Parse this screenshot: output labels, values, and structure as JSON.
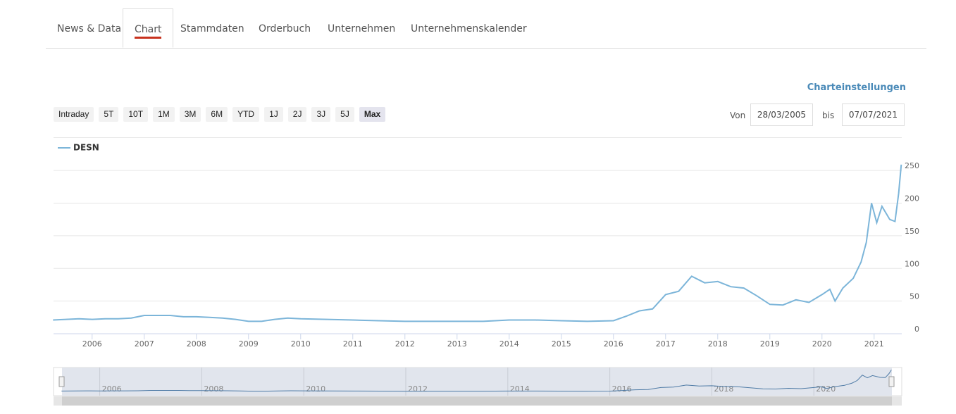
{
  "tabs": [
    "News & Data",
    "Chart",
    "Stammdaten",
    "Orderbuch",
    "Unternehmen",
    "Unternehmenskalender"
  ],
  "active_tab": 1,
  "settings_link": "Charteinstellungen",
  "ranges": [
    "Intraday",
    "5T",
    "10T",
    "1M",
    "3M",
    "6M",
    "YTD",
    "1J",
    "2J",
    "3J",
    "5J",
    "Max"
  ],
  "active_range": 11,
  "from_label": "Von",
  "from_date": "28/03/2005",
  "to_label": "bis",
  "to_date": "07/07/2021",
  "chart_data": {
    "type": "line",
    "x": [
      2005.25,
      2005.5,
      2005.75,
      2006,
      2006.25,
      2006.5,
      2006.75,
      2007,
      2007.25,
      2007.5,
      2007.75,
      2008,
      2008.25,
      2008.5,
      2008.75,
      2009,
      2009.25,
      2009.5,
      2009.75,
      2010,
      2010.5,
      2011,
      2011.5,
      2012,
      2012.5,
      2013,
      2013.5,
      2014,
      2014.5,
      2015,
      2015.5,
      2016,
      2016.25,
      2016.5,
      2016.75,
      2017,
      2017.25,
      2017.5,
      2017.75,
      2018,
      2018.25,
      2018.5,
      2018.75,
      2019,
      2019.25,
      2019.5,
      2019.75,
      2020,
      2020.15,
      2020.25,
      2020.4,
      2020.6,
      2020.75,
      2020.85,
      2020.95,
      2021.05,
      2021.15,
      2021.3,
      2021.4,
      2021.47,
      2021.52
    ],
    "series": [
      {
        "name": "DESN",
        "color": "#7cb5d9",
        "values": [
          21,
          22,
          23,
          22,
          23,
          23,
          24,
          28,
          28,
          28,
          26,
          26,
          25,
          24,
          22,
          19,
          19,
          22,
          24,
          23,
          22,
          21,
          20,
          19,
          19,
          19,
          19,
          21,
          21,
          20,
          19,
          20,
          27,
          35,
          38,
          60,
          65,
          88,
          78,
          80,
          72,
          70,
          58,
          45,
          44,
          52,
          48,
          60,
          68,
          50,
          70,
          85,
          110,
          140,
          200,
          170,
          195,
          175,
          172,
          215,
          259
        ]
      }
    ],
    "xlim": [
      2005.26,
      2021.53
    ],
    "xticks": [
      2006,
      2007,
      2008,
      2009,
      2010,
      2011,
      2012,
      2013,
      2014,
      2015,
      2016,
      2017,
      2018,
      2019,
      2020,
      2021
    ],
    "ylim": [
      0,
      262
    ],
    "yticks": [
      0,
      50,
      100,
      150,
      200,
      250
    ],
    "grid": true
  }
}
